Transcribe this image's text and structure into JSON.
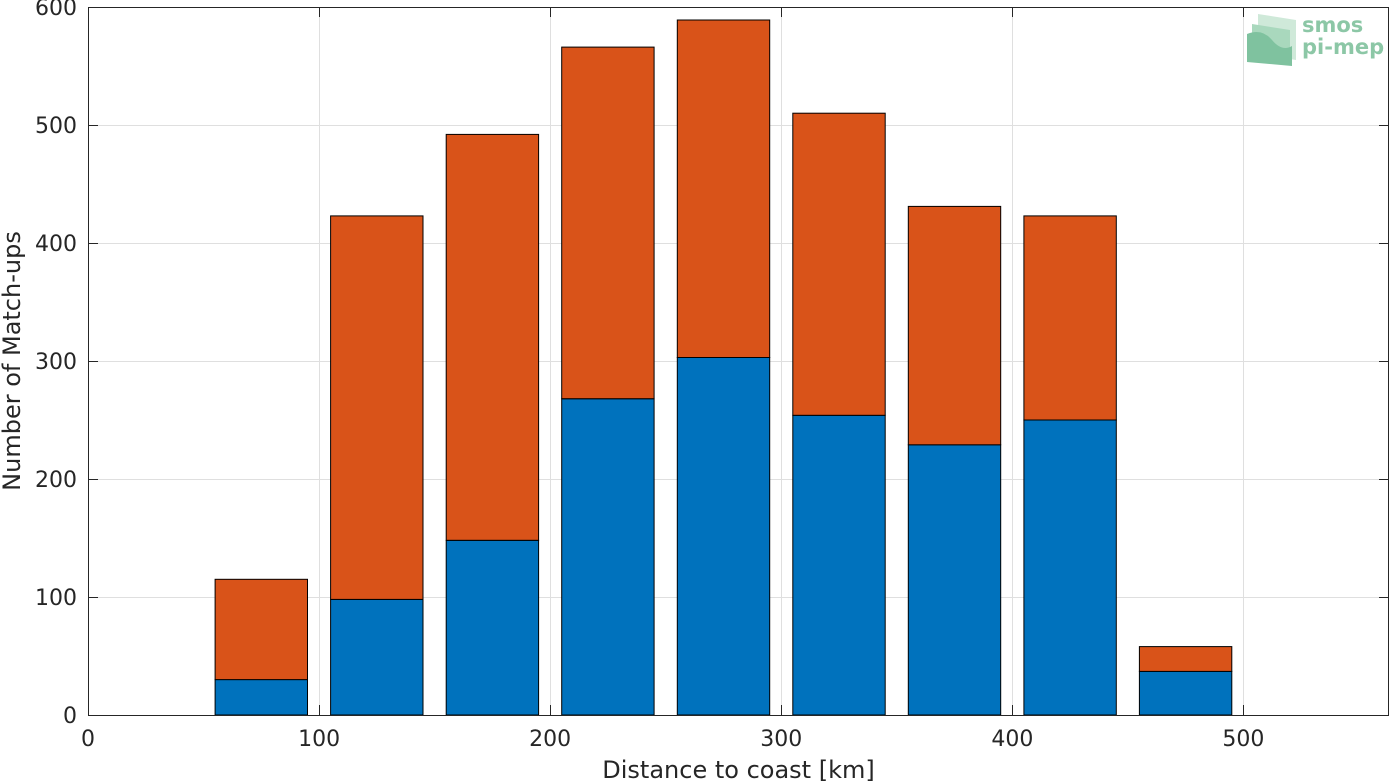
{
  "chart_data": {
    "type": "bar",
    "stacked": true,
    "x": [
      75,
      125,
      175,
      225,
      275,
      325,
      375,
      425,
      475
    ],
    "bar_width": 40,
    "series": [
      {
        "values": [
          30,
          98,
          148,
          268,
          303,
          254,
          229,
          250,
          37
        ],
        "color": "#0072bd"
      },
      {
        "values": [
          85,
          325,
          344,
          298,
          286,
          256,
          202,
          173,
          21
        ],
        "color": "#d95319"
      }
    ],
    "xlim": [
      0,
      563
    ],
    "ylim": [
      0,
      600
    ],
    "xticks": [
      0,
      100,
      200,
      300,
      400,
      500
    ],
    "yticks": [
      0,
      100,
      200,
      300,
      400,
      500,
      600
    ],
    "xlabel": "Distance to coast [km]",
    "ylabel": "Number of Match-ups",
    "grid": true,
    "title": ""
  },
  "logo": {
    "line1": "smos",
    "line2": "pi-mep",
    "color": "#8cc7a6"
  }
}
